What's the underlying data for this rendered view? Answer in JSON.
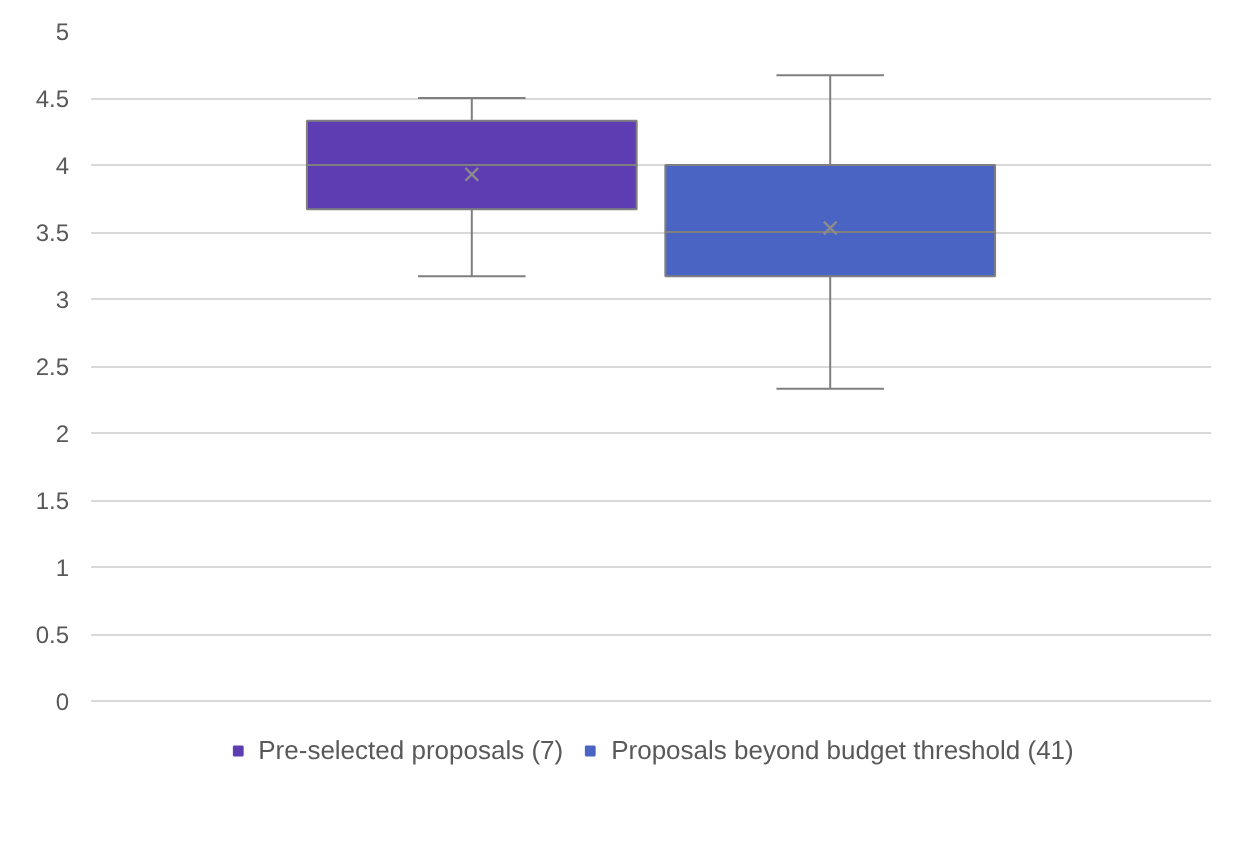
{
  "chart_data": {
    "type": "box",
    "categories": [
      null
    ],
    "ylim": [
      0,
      5
    ],
    "yticks": [
      0,
      0.5,
      1,
      1.5,
      2,
      2.5,
      3,
      3.5,
      4,
      4.5,
      5
    ],
    "grid": "y",
    "legend": "bottom",
    "series": [
      {
        "name": "Pre-selected proposals (7)",
        "color": "#5e3db3",
        "boxes": [
          {
            "low": 3.17,
            "q1": 3.67,
            "median": 4,
            "q3": 4.33,
            "high": 4.5,
            "mean": 3.93
          }
        ]
      },
      {
        "name": "Proposals beyond budget threshold (41)",
        "color": "#4a64c4",
        "boxes": [
          {
            "low": 2.33,
            "q1": 3.17,
            "median": 3.5,
            "q3": 4.0,
            "high": 4.67,
            "mean": 3.53
          }
        ]
      }
    ]
  }
}
